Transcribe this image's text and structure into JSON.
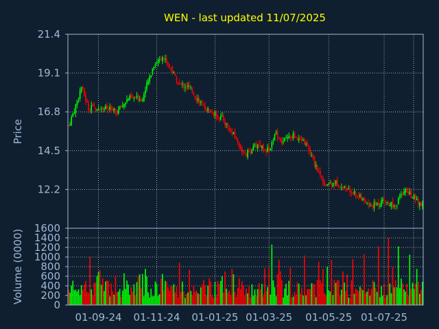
{
  "chart_data": {
    "type": "candlestick",
    "title": "WEN - last updated 11/07/2025",
    "colors": {
      "background": "#0f1f2f",
      "title": "#ffff00",
      "axis_text": "#a0b8d8",
      "grid": "#c8c8c8",
      "up": "#00ff00",
      "down": "#ff0000"
    },
    "price_panel": {
      "ylabel": "Price",
      "ylim": [
        9.9,
        21.4
      ],
      "yticks": [
        "21.4",
        "19.1",
        "16.8",
        "14.5",
        "12.2"
      ],
      "ytick_values": [
        21.4,
        19.1,
        16.8,
        14.5,
        12.2
      ],
      "grid": true
    },
    "volume_panel": {
      "ylabel": "Volume (0000)",
      "ylim": [
        0,
        1600
      ],
      "yticks": [
        "1600",
        "1400",
        "1200",
        "1000",
        "800",
        "600",
        "400",
        "200",
        "0"
      ],
      "ytick_values": [
        1600,
        1400,
        1200,
        1000,
        800,
        600,
        400,
        200,
        0
      ],
      "grid": true
    },
    "x_axis": {
      "labels": [
        "01-09-24",
        "01-11-24",
        "01-01-25",
        "01-03-25",
        "01-05-25",
        "01-07-25"
      ],
      "label_positions": [
        21,
        62,
        103,
        141,
        183,
        222
      ]
    },
    "bars_count": 250,
    "price_path": [
      [
        0,
        16.0
      ],
      [
        4,
        16.9
      ],
      [
        9,
        18.3
      ],
      [
        14,
        17.0
      ],
      [
        22,
        17.1
      ],
      [
        34,
        16.8
      ],
      [
        42,
        17.6
      ],
      [
        52,
        17.6
      ],
      [
        56,
        18.6
      ],
      [
        60,
        19.6
      ],
      [
        66,
        20.1
      ],
      [
        72,
        19.4
      ],
      [
        78,
        18.4
      ],
      [
        84,
        18.3
      ],
      [
        96,
        17.0
      ],
      [
        108,
        16.4
      ],
      [
        117,
        15.3
      ],
      [
        124,
        14.2
      ],
      [
        133,
        14.9
      ],
      [
        141,
        14.5
      ],
      [
        146,
        15.6
      ],
      [
        150,
        15.0
      ],
      [
        158,
        15.4
      ],
      [
        166,
        15.0
      ],
      [
        174,
        13.6
      ],
      [
        180,
        12.5
      ],
      [
        188,
        12.6
      ],
      [
        196,
        12.2
      ],
      [
        204,
        11.8
      ],
      [
        212,
        11.2
      ],
      [
        222,
        11.5
      ],
      [
        230,
        11.2
      ],
      [
        236,
        12.2
      ],
      [
        242,
        11.8
      ],
      [
        249,
        11.2
      ]
    ],
    "volume_spikes": [
      [
        15,
        1000
      ],
      [
        65,
        550
      ],
      [
        78,
        880
      ],
      [
        110,
        700
      ],
      [
        143,
        1260
      ],
      [
        148,
        940
      ],
      [
        156,
        780
      ],
      [
        166,
        1030
      ],
      [
        176,
        900
      ],
      [
        185,
        940
      ],
      [
        200,
        960
      ],
      [
        208,
        1060
      ],
      [
        218,
        1220
      ],
      [
        225,
        1400
      ],
      [
        232,
        1220
      ],
      [
        240,
        1050
      ]
    ]
  }
}
